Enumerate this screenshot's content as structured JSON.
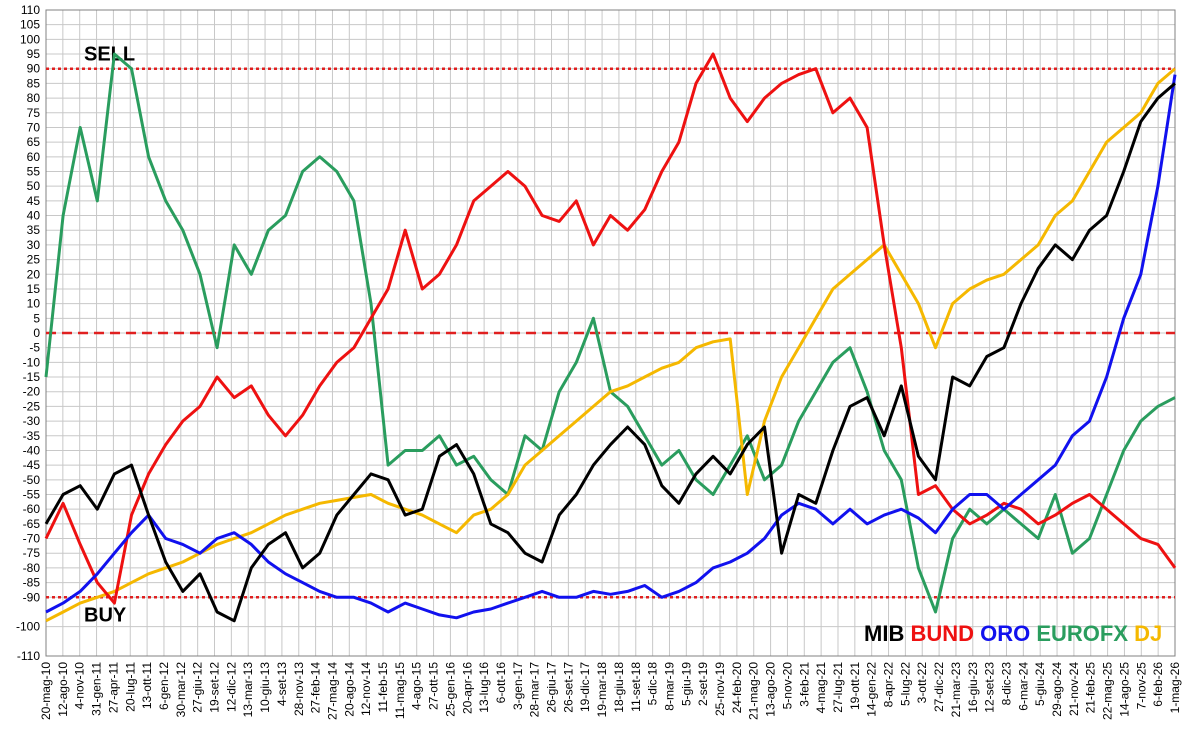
{
  "chart_data": {
    "type": "line",
    "title": "",
    "xlabel": "",
    "ylabel": "",
    "ylim": [
      -110,
      110
    ],
    "grid": true,
    "x_tick_labels": [
      "20-mag-10",
      "12-ago-10",
      "4-nov-10",
      "31-gen-11",
      "27-apr-11",
      "20-lug-11",
      "13-ott-11",
      "6-gen-12",
      "30-mar-12",
      "27-giu-12",
      "19-set-12",
      "12-dic-12",
      "13-mar-13",
      "10-giu-13",
      "4-set-13",
      "28-nov-13",
      "27-feb-14",
      "27-mag-14",
      "20-ago-14",
      "12-nov-14",
      "11-feb-15",
      "11-mag-15",
      "4-ago-15",
      "27-ott-15",
      "25-gen-16",
      "20-apr-16",
      "13-lug-16",
      "6-ott-16",
      "3-gen-17",
      "28-mar-17",
      "26-giu-17",
      "26-set-17",
      "19-dic-17",
      "19-mar-18",
      "18-giu-18",
      "11-set-18",
      "5-dic-18",
      "8-mar-19",
      "5-giu-19",
      "2-set-19",
      "25-nov-19",
      "24-feb-20",
      "21-mag-20",
      "13-ago-20",
      "5-nov-20",
      "3-feb-21",
      "4-mag-21",
      "27-lug-21",
      "19-ott-21",
      "14-gen-22",
      "8-apr-22",
      "5-lug-22",
      "3-ott-22",
      "27-dic-22",
      "21-mar-23",
      "16-giu-23",
      "12-set-23",
      "8-dic-23",
      "6-mar-24",
      "5-giu-24",
      "29-ago-24",
      "21-nov-24",
      "21-feb-25",
      "22-mag-25",
      "14-ago-25",
      "7-nov-25",
      "6-feb-26",
      "1-mag-26"
    ],
    "y_ticks": [
      -110,
      -100,
      -90,
      -85,
      -80,
      -75,
      -70,
      -65,
      -60,
      -55,
      -50,
      -45,
      -40,
      -35,
      -30,
      -25,
      -20,
      -15,
      -10,
      -5,
      0,
      5,
      10,
      15,
      20,
      25,
      30,
      35,
      40,
      45,
      50,
      55,
      60,
      65,
      70,
      75,
      80,
      85,
      90,
      95,
      100,
      105,
      110
    ],
    "reference_lines": [
      {
        "y": 90,
        "label": "SELL",
        "style": "dotted",
        "color": "#e02020"
      },
      {
        "y": 0,
        "label": "",
        "style": "dashed",
        "color": "#e02020"
      },
      {
        "y": -90,
        "label": "BUY",
        "style": "dotted",
        "color": "#e02020"
      }
    ],
    "legend_position": "bottom-right",
    "series": [
      {
        "name": "MIB",
        "color": "#000000",
        "values": [
          -65,
          -55,
          -52,
          -60,
          -48,
          -45,
          -62,
          -78,
          -88,
          -82,
          -95,
          -98,
          -80,
          -72,
          -68,
          -80,
          -75,
          -62,
          -55,
          -48,
          -50,
          -62,
          -60,
          -42,
          -38,
          -48,
          -65,
          -68,
          -75,
          -78,
          -62,
          -55,
          -45,
          -38,
          -32,
          -38,
          -52,
          -58,
          -48,
          -42,
          -48,
          -38,
          -32,
          -75,
          -55,
          -58,
          -40,
          -25,
          -22,
          -35,
          -18,
          -42,
          -50,
          -15,
          -18,
          -8,
          -5,
          10,
          22,
          30,
          25,
          35,
          40,
          55,
          72,
          80,
          85
        ]
      },
      {
        "name": "BUND",
        "color": "#ee1111",
        "values": [
          -70,
          -58,
          -72,
          -85,
          -92,
          -62,
          -48,
          -38,
          -30,
          -25,
          -15,
          -22,
          -18,
          -28,
          -35,
          -28,
          -18,
          -10,
          -5,
          5,
          15,
          35,
          15,
          20,
          30,
          45,
          50,
          55,
          50,
          40,
          38,
          45,
          30,
          40,
          35,
          42,
          55,
          65,
          85,
          95,
          80,
          72,
          80,
          85,
          88,
          90,
          75,
          80,
          70,
          30,
          -5,
          -55,
          -52,
          -60,
          -65,
          -62,
          -58,
          -60,
          -65,
          -62,
          -58,
          -55,
          -60,
          -65,
          -70,
          -72,
          -80
        ]
      },
      {
        "name": "ORO",
        "color": "#1111ee",
        "values": [
          -95,
          -92,
          -88,
          -82,
          -75,
          -68,
          -62,
          -70,
          -72,
          -75,
          -70,
          -68,
          -72,
          -78,
          -82,
          -85,
          -88,
          -90,
          -90,
          -92,
          -95,
          -92,
          -94,
          -96,
          -97,
          -95,
          -94,
          -92,
          -90,
          -88,
          -90,
          -90,
          -88,
          -89,
          -88,
          -86,
          -90,
          -88,
          -85,
          -80,
          -78,
          -75,
          -70,
          -62,
          -58,
          -60,
          -65,
          -60,
          -65,
          -62,
          -60,
          -63,
          -68,
          -60,
          -55,
          -55,
          -60,
          -55,
          -50,
          -45,
          -35,
          -30,
          -15,
          5,
          20,
          50,
          88
        ]
      },
      {
        "name": "EUROFX",
        "color": "#2a9d5e",
        "values": [
          -15,
          40,
          70,
          45,
          95,
          90,
          60,
          45,
          35,
          20,
          -5,
          30,
          20,
          35,
          40,
          55,
          60,
          55,
          45,
          10,
          -45,
          -40,
          -40,
          -35,
          -45,
          -42,
          -50,
          -55,
          -35,
          -40,
          -20,
          -10,
          5,
          -20,
          -25,
          -35,
          -45,
          -40,
          -50,
          -55,
          -45,
          -35,
          -50,
          -45,
          -30,
          -20,
          -10,
          -5,
          -20,
          -40,
          -50,
          -80,
          -95,
          -70,
          -60,
          -65,
          -60,
          -65,
          -70,
          -55,
          -75,
          -70,
          -55,
          -40,
          -30,
          -25,
          -22
        ]
      },
      {
        "name": "DJ",
        "color": "#f5b800",
        "values": [
          -98,
          -95,
          -92,
          -90,
          -88,
          -85,
          -82,
          -80,
          -78,
          -75,
          -72,
          -70,
          -68,
          -65,
          -62,
          -60,
          -58,
          -57,
          -56,
          -55,
          -58,
          -60,
          -62,
          -65,
          -68,
          -62,
          -60,
          -55,
          -45,
          -40,
          -35,
          -30,
          -25,
          -20,
          -18,
          -15,
          -12,
          -10,
          -5,
          -3,
          -2,
          -55,
          -30,
          -15,
          -5,
          5,
          15,
          20,
          25,
          30,
          20,
          10,
          -5,
          10,
          15,
          18,
          20,
          25,
          30,
          40,
          45,
          55,
          65,
          70,
          75,
          85,
          90
        ]
      }
    ]
  }
}
